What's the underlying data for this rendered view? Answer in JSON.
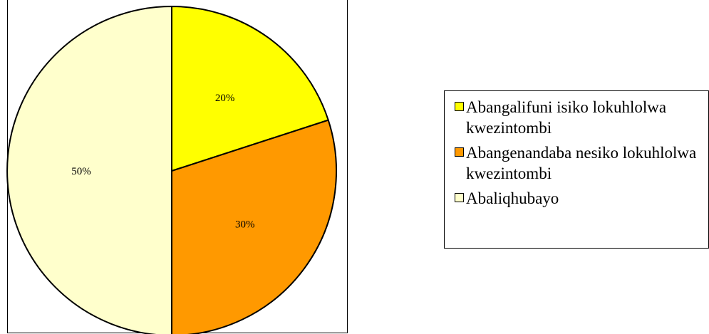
{
  "chart_data": {
    "type": "pie",
    "slices": [
      {
        "name": "Abangalifuni isiko lokuhlolwa kwezintombi",
        "value": 20,
        "label": "20%",
        "color": "#ffff00"
      },
      {
        "name": "Abangenandaba nesiko lokuhlolwa kwezintombi",
        "value": 30,
        "label": "30%",
        "color": "#ff9900"
      },
      {
        "name": "Abaliqhubayo",
        "value": 50,
        "label": "50%",
        "color": "#ffffcc"
      }
    ],
    "legend_position": "right"
  }
}
